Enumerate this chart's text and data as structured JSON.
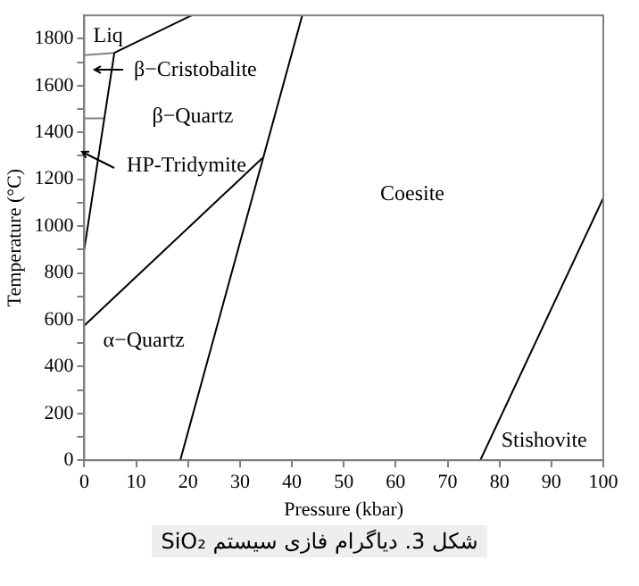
{
  "chart_data": {
    "type": "line",
    "xlabel": "Pressure (kbar)",
    "ylabel": "Temperature (°C)",
    "xlim": [
      0,
      100
    ],
    "xticks": [
      0,
      10,
      20,
      30,
      40,
      50,
      60,
      70,
      80,
      90,
      100
    ],
    "ylim": [
      0,
      1900
    ],
    "yticks": [
      0,
      {
        "value": 100,
        "label": null
      },
      200,
      {
        "value": 300,
        "label": null
      },
      400,
      {
        "value": 500,
        "label": null
      },
      600,
      {
        "value": 700,
        "label": null
      },
      800,
      {
        "value": 900,
        "label": null
      },
      1000,
      {
        "value": 1100,
        "label": null
      },
      1200,
      {
        "value": 1300,
        "label": null
      },
      1400,
      {
        "value": 1500,
        "label": null
      },
      1600,
      {
        "value": 1700,
        "label": null
      },
      1800
    ],
    "grid": false,
    "legend": false,
    "marker": "none",
    "line_style": "solid",
    "series": [
      {
        "color": "#000000",
        "x": [
          18.5,
          42
        ],
        "values": [
          0,
          1900
        ]
      },
      {
        "color": "#000000",
        "x": [
          0,
          34.3
        ],
        "values": [
          575,
          1290
        ]
      },
      {
        "color": "#000000",
        "x": [
          0,
          5.8
        ],
        "values": [
          900,
          1740
        ]
      },
      {
        "color": "#000000",
        "x": [
          5.8,
          20.7
        ],
        "values": [
          1740,
          1900
        ]
      },
      {
        "color": "#808080",
        "x": [
          0,
          5.8
        ],
        "values": [
          1730,
          1740
        ]
      },
      {
        "color": "#808080",
        "x": [
          0,
          3.8
        ],
        "values": [
          1460,
          1460
        ]
      },
      {
        "color": "#000000",
        "x": [
          76.3,
          100
        ],
        "values": [
          0,
          1120
        ]
      }
    ],
    "annotations": [
      "Liq",
      "β−Cristobalite",
      "β−Quartz",
      "HP-Tridymite",
      "Coesite",
      "α−Quartz",
      "Stishovite",
      "شکل 3. دیاگرام فازی سیستم SiO₂"
    ]
  }
}
